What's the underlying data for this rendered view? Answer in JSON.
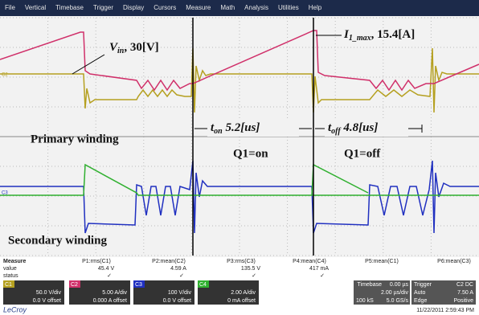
{
  "menu": [
    "File",
    "Vertical",
    "Timebase",
    "Trigger",
    "Display",
    "Cursors",
    "Measure",
    "Math",
    "Analysis",
    "Utilities",
    "Help"
  ],
  "annotations": {
    "vin": {
      "main": "V",
      "sub": "in",
      "rest": ", 30[V]"
    },
    "imax": {
      "main": "I",
      "sub": "1_max",
      "rest": ", 15.4[A]"
    },
    "ton": {
      "main": "t",
      "sub": "on",
      "rest": " 5.2[us]"
    },
    "toff": {
      "main": "t",
      "sub": "off",
      "rest": " 4.8[us]"
    },
    "primary": "Primary winding",
    "secondary": "Secondary winding",
    "q1_on": "Q1=on",
    "q1_off": "Q1=off",
    "trace_top": "C2",
    "trace_bottom": "C3"
  },
  "measure": {
    "title": "Measure",
    "row_labels": [
      "value",
      "status"
    ],
    "columns": [
      {
        "name": "P1:rms(C1)",
        "value": "45.4 V",
        "status": "✓"
      },
      {
        "name": "P2:mean(C2)",
        "value": "4.59 A",
        "status": "✓"
      },
      {
        "name": "P3:rms(C3)",
        "value": "135.5 V",
        "status": "✓"
      },
      {
        "name": "P4:mean(C4)",
        "value": "417 mA",
        "status": "✓"
      },
      {
        "name": "P5:mean(C1)"
      },
      {
        "name": "P6:mean(C3)"
      }
    ]
  },
  "channels": [
    {
      "name": "C1",
      "scale": "50.0 V/div",
      "offset": "0.0 V offset"
    },
    {
      "name": "C2",
      "scale": "5.00 A/div",
      "offset": "0.000 A offset"
    },
    {
      "name": "C3",
      "scale": "100 V/div",
      "offset": "0.0 V offset"
    },
    {
      "name": "C4",
      "scale": "2.00 A/div",
      "offset": "0 mA offset"
    }
  ],
  "timebase": {
    "title": "Timebase",
    "delay": "0.00 µs",
    "per_div": "2.00 µs/div",
    "samples": "100 kS",
    "rate": "5.0 GS/s"
  },
  "trigger": {
    "title": "Trigger",
    "source": "C2 DC",
    "mode": "Auto",
    "level": "7.50 A",
    "kind": "Edge",
    "slope": "Positive"
  },
  "brand": "LeCroy",
  "timestamp": "11/22/2011 2:59:43 PM"
}
